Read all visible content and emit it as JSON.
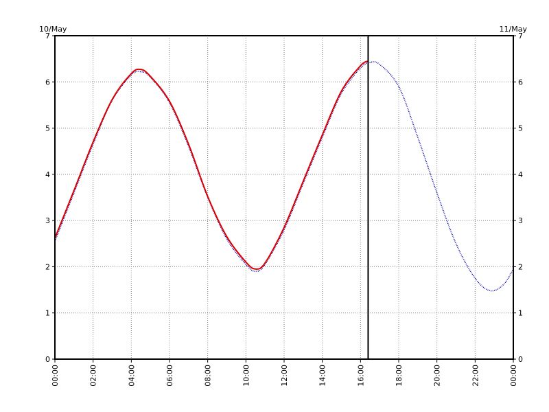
{
  "chart_data": {
    "type": "line",
    "title": "",
    "xlabel": "",
    "ylabel": "",
    "date_left": "10/May",
    "date_right": "11/May",
    "x_ticks": [
      "00:00",
      "02:00",
      "04:00",
      "06:00",
      "08:00",
      "10:00",
      "12:00",
      "14:00",
      "16:00",
      "18:00",
      "20:00",
      "22:00",
      "00:00"
    ],
    "y_ticks": [
      "0",
      "1",
      "2",
      "3",
      "4",
      "5",
      "6",
      "7"
    ],
    "xlim_hours": [
      0,
      24
    ],
    "ylim": [
      0,
      7
    ],
    "grid": true,
    "grid_style": "dotted",
    "now_marker_hour": 16.4,
    "series": [
      {
        "role": "predicted",
        "color": "#0000aa",
        "style": "dotted",
        "x_hours": [
          0,
          1,
          2,
          3,
          4,
          4.5,
          5,
          6,
          7,
          8,
          9,
          10,
          10.5,
          11,
          12,
          13,
          14,
          15,
          16,
          16.5,
          17,
          18,
          19,
          20,
          21,
          22,
          22.8,
          23.5,
          24
        ],
        "values": [
          2.55,
          3.6,
          4.65,
          5.6,
          6.15,
          6.22,
          6.1,
          5.55,
          4.6,
          3.5,
          2.6,
          2.05,
          1.9,
          2.05,
          2.8,
          3.8,
          4.8,
          5.75,
          6.3,
          6.42,
          6.38,
          5.9,
          4.8,
          3.6,
          2.5,
          1.75,
          1.48,
          1.62,
          1.95
        ]
      },
      {
        "role": "observed",
        "color": "#dd0000",
        "style": "solid",
        "x_hours": [
          0,
          1,
          2,
          3,
          4,
          4.5,
          5,
          6,
          7,
          8,
          9,
          10,
          10.5,
          11,
          12,
          13,
          14,
          15,
          16,
          16.4
        ],
        "values": [
          2.62,
          3.65,
          4.7,
          5.62,
          6.18,
          6.27,
          6.12,
          5.58,
          4.65,
          3.52,
          2.65,
          2.1,
          1.95,
          2.08,
          2.85,
          3.85,
          4.85,
          5.8,
          6.35,
          6.45
        ]
      }
    ]
  }
}
